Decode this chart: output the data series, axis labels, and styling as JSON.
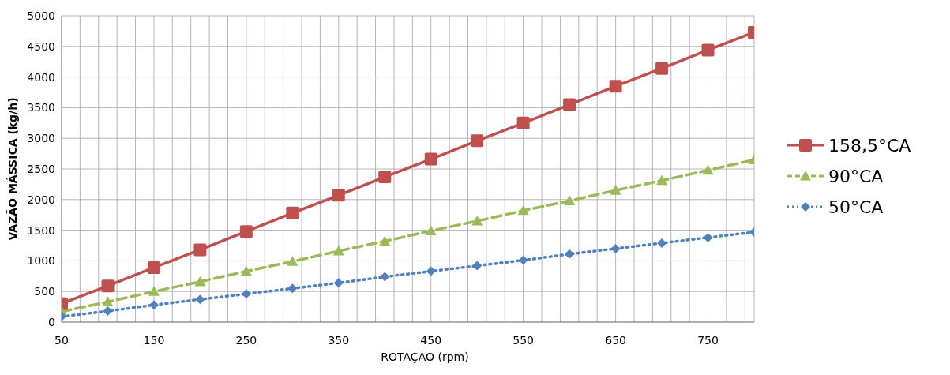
{
  "chart_data": {
    "type": "line",
    "xlabel": "ROTAÇÃO (rpm)",
    "ylabel": "VAZÃO MÁSSICA  (kg/h)",
    "x": [
      50,
      100,
      150,
      200,
      250,
      300,
      350,
      400,
      450,
      500,
      550,
      600,
      650,
      700,
      750,
      800
    ],
    "series": [
      {
        "name": "158,5°CA",
        "color": "#c0504d",
        "marker": "square",
        "line_style": "solid",
        "values": [
          300,
          590,
          890,
          1180,
          1480,
          1780,
          2070,
          2370,
          2660,
          2960,
          3250,
          3550,
          3850,
          4140,
          4440,
          4730
        ]
      },
      {
        "name": "90°CA",
        "color": "#9bbb59",
        "marker": "triangle",
        "line_style": "dashed",
        "values": [
          170,
          330,
          500,
          660,
          830,
          990,
          1160,
          1320,
          1490,
          1650,
          1820,
          1980,
          2150,
          2310,
          2480,
          2650
        ]
      },
      {
        "name": "50°CA",
        "color": "#4f81bd",
        "marker": "diamond",
        "line_style": "dotted",
        "values": [
          90,
          180,
          280,
          370,
          460,
          550,
          640,
          740,
          830,
          920,
          1010,
          1110,
          1200,
          1290,
          1380,
          1470
        ]
      }
    ],
    "xlim": [
      50,
      800
    ],
    "xticks": [
      50,
      {
        "value": 70,
        "label": null
      },
      {
        "value": 90,
        "label": null
      },
      {
        "value": 110,
        "label": null
      },
      {
        "value": 130,
        "label": null
      },
      150,
      {
        "value": 170,
        "label": null
      },
      {
        "value": 190,
        "label": null
      },
      {
        "value": 210,
        "label": null
      },
      {
        "value": 230,
        "label": null
      },
      250,
      {
        "value": 270,
        "label": null
      },
      {
        "value": 290,
        "label": null
      },
      {
        "value": 310,
        "label": null
      },
      {
        "value": 330,
        "label": null
      },
      350,
      {
        "value": 370,
        "label": null
      },
      {
        "value": 390,
        "label": null
      },
      {
        "value": 410,
        "label": null
      },
      {
        "value": 430,
        "label": null
      },
      450,
      {
        "value": 470,
        "label": null
      },
      {
        "value": 490,
        "label": null
      },
      {
        "value": 510,
        "label": null
      },
      {
        "value": 530,
        "label": null
      },
      550,
      {
        "value": 570,
        "label": null
      },
      {
        "value": 590,
        "label": null
      },
      {
        "value": 610,
        "label": null
      },
      {
        "value": 630,
        "label": null
      },
      650,
      {
        "value": 670,
        "label": null
      },
      {
        "value": 690,
        "label": null
      },
      {
        "value": 710,
        "label": null
      },
      {
        "value": 730,
        "label": null
      },
      750,
      {
        "value": 770,
        "label": null
      },
      {
        "value": 790,
        "label": null
      }
    ],
    "ylim": [
      0,
      5000
    ],
    "yticks": [
      0,
      500,
      1000,
      1500,
      2000,
      2500,
      3000,
      3500,
      4000,
      4500,
      5000
    ],
    "grid": true,
    "legend": "right"
  }
}
